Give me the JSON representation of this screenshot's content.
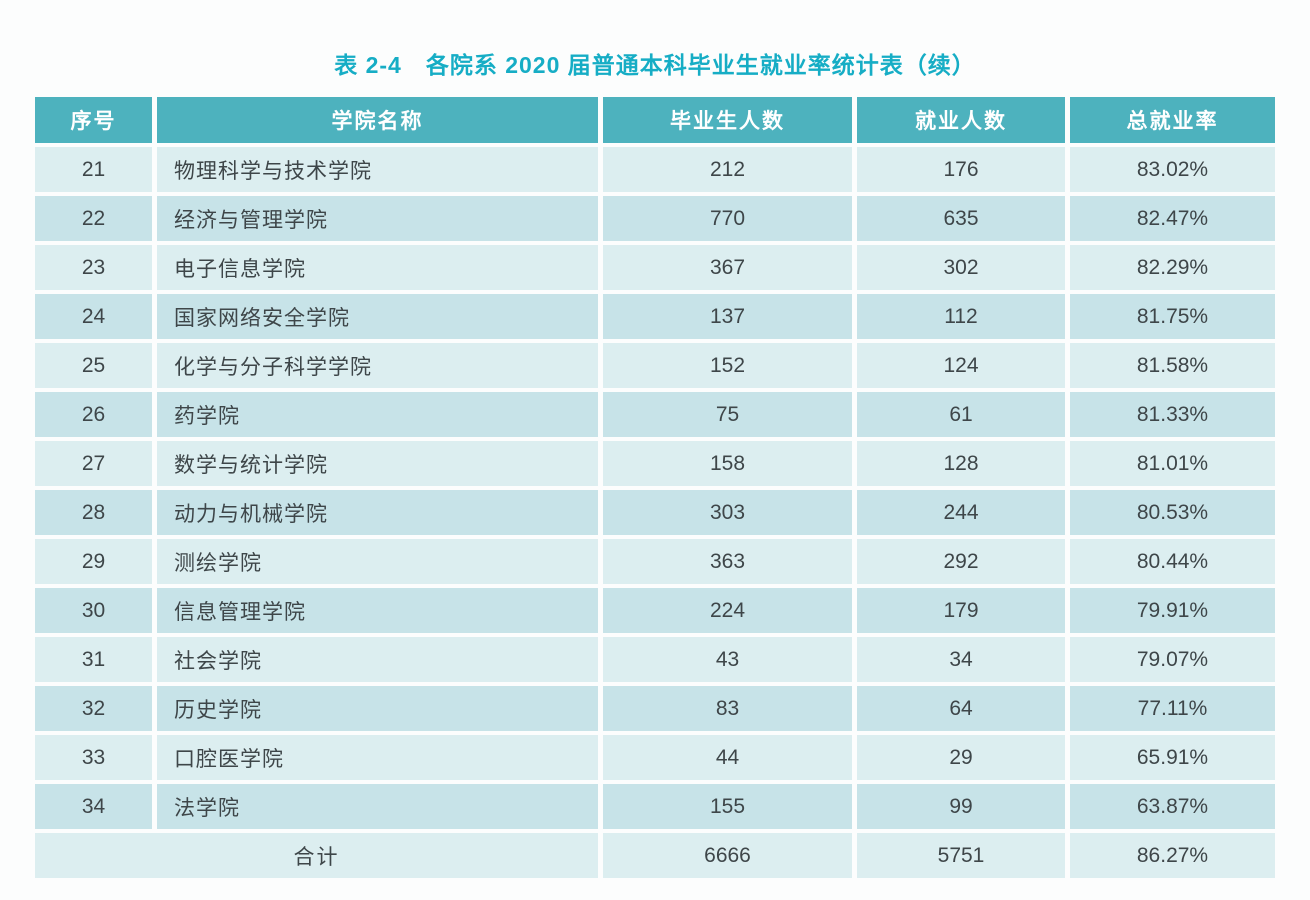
{
  "title": "表 2-4　各院系 2020 届普通本科毕业生就业率统计表（续）",
  "colors": {
    "title_text": "#16adc5",
    "header_bg": "#4db2be",
    "header_text": "#ffffff",
    "row_light_bg": "#dceef0",
    "row_dark_bg": "#c7e3e8",
    "body_text": "#3e4649",
    "page_bg": "#fcfdfd"
  },
  "table": {
    "headers": {
      "no": "序号",
      "college": "学院名称",
      "graduates": "毕业生人数",
      "employed": "就业人数",
      "rate": "总就业率"
    },
    "rows": [
      {
        "no": "21",
        "college": "物理科学与技术学院",
        "graduates": "212",
        "employed": "176",
        "rate": "83.02%"
      },
      {
        "no": "22",
        "college": "经济与管理学院",
        "graduates": "770",
        "employed": "635",
        "rate": "82.47%"
      },
      {
        "no": "23",
        "college": "电子信息学院",
        "graduates": "367",
        "employed": "302",
        "rate": "82.29%"
      },
      {
        "no": "24",
        "college": "国家网络安全学院",
        "graduates": "137",
        "employed": "112",
        "rate": "81.75%"
      },
      {
        "no": "25",
        "college": "化学与分子科学学院",
        "graduates": "152",
        "employed": "124",
        "rate": "81.58%"
      },
      {
        "no": "26",
        "college": "药学院",
        "graduates": "75",
        "employed": "61",
        "rate": "81.33%"
      },
      {
        "no": "27",
        "college": "数学与统计学院",
        "graduates": "158",
        "employed": "128",
        "rate": "81.01%"
      },
      {
        "no": "28",
        "college": "动力与机械学院",
        "graduates": "303",
        "employed": "244",
        "rate": "80.53%"
      },
      {
        "no": "29",
        "college": "测绘学院",
        "graduates": "363",
        "employed": "292",
        "rate": "80.44%"
      },
      {
        "no": "30",
        "college": "信息管理学院",
        "graduates": "224",
        "employed": "179",
        "rate": "79.91%"
      },
      {
        "no": "31",
        "college": "社会学院",
        "graduates": "43",
        "employed": "34",
        "rate": "79.07%"
      },
      {
        "no": "32",
        "college": "历史学院",
        "graduates": "83",
        "employed": "64",
        "rate": "77.11%"
      },
      {
        "no": "33",
        "college": "口腔医学院",
        "graduates": "44",
        "employed": "29",
        "rate": "65.91%"
      },
      {
        "no": "34",
        "college": "法学院",
        "graduates": "155",
        "employed": "99",
        "rate": "63.87%"
      }
    ],
    "total": {
      "label": "合计",
      "graduates": "6666",
      "employed": "5751",
      "rate": "86.27%"
    }
  }
}
